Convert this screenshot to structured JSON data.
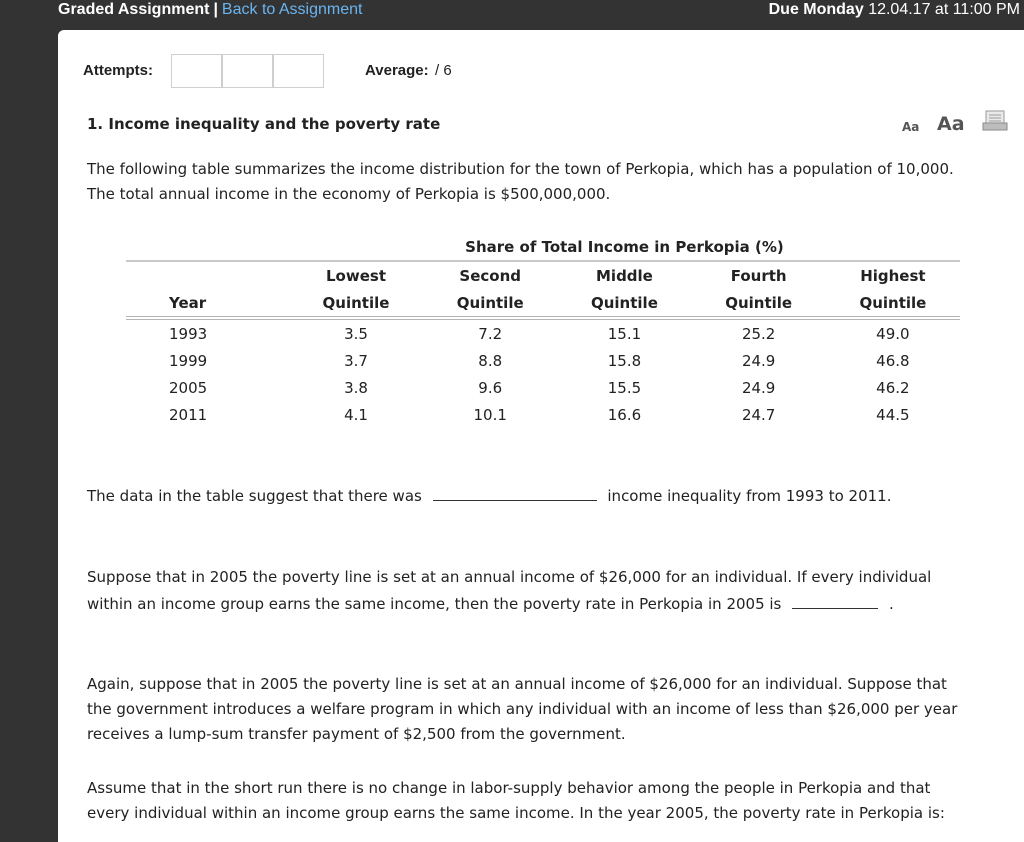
{
  "header": {
    "title": "Graded Assignment",
    "separator": "|",
    "back_link": "Back to Assignment",
    "due_prefix": "Due Monday",
    "due_date": "12.04.17 at 11:00 PM"
  },
  "attempts": {
    "label": "Attempts:",
    "average_label": "Average:",
    "average_value": "/ 6"
  },
  "question": {
    "title": "1. Income inequality and the poverty rate",
    "font_small": "Aa",
    "font_large": "Aa",
    "intro_line1": "The following table summarizes the income distribution for the town of Perkopia, which has a population of 10,000.",
    "intro_line2": "The total annual income in the economy of Perkopia is $500,000,000.",
    "table": {
      "caption": "Share of Total Income in Perkopia (%)",
      "col_year": "Year",
      "columns": [
        {
          "line1": "Lowest",
          "line2": "Quintile"
        },
        {
          "line1": "Second",
          "line2": "Quintile"
        },
        {
          "line1": "Middle",
          "line2": "Quintile"
        },
        {
          "line1": "Fourth",
          "line2": "Quintile"
        },
        {
          "line1": "Highest",
          "line2": "Quintile"
        }
      ],
      "rows": [
        {
          "year": "1993",
          "values": [
            "3.5",
            "7.2",
            "15.1",
            "25.2",
            "49.0"
          ]
        },
        {
          "year": "1999",
          "values": [
            "3.7",
            "8.8",
            "15.8",
            "24.9",
            "46.8"
          ]
        },
        {
          "year": "2005",
          "values": [
            "3.8",
            "9.6",
            "15.5",
            "24.9",
            "46.2"
          ]
        },
        {
          "year": "2011",
          "values": [
            "4.1",
            "10.1",
            "16.6",
            "24.7",
            "44.5"
          ]
        }
      ]
    },
    "part1_before": "The data in the table suggest that there was",
    "part1_after": "income inequality from 1993 to 2011.",
    "part2_line1": "Suppose that in 2005 the poverty line is set at an annual income of $26,000 for an individual. If every individual",
    "part2_line2": "within an income group earns the same income, then the poverty rate in Perkopia in 2005 is",
    "part2_end": ".",
    "part3_line1": "Again, suppose that in 2005 the poverty line is set at an annual income of $26,000 for an individual. Suppose that",
    "part3_line2": "the government introduces a welfare program in which any individual with an income of less than $26,000 per year",
    "part3_line3": "receives a lump-sum transfer payment of $2,500 from the government.",
    "part4_line1": "Assume that in the short run there is no change in labor-supply behavior among the people in Perkopia and that",
    "part4_line2": "every individual within an income group earns the same income. In the year 2005, the poverty rate in Perkopia is:"
  }
}
